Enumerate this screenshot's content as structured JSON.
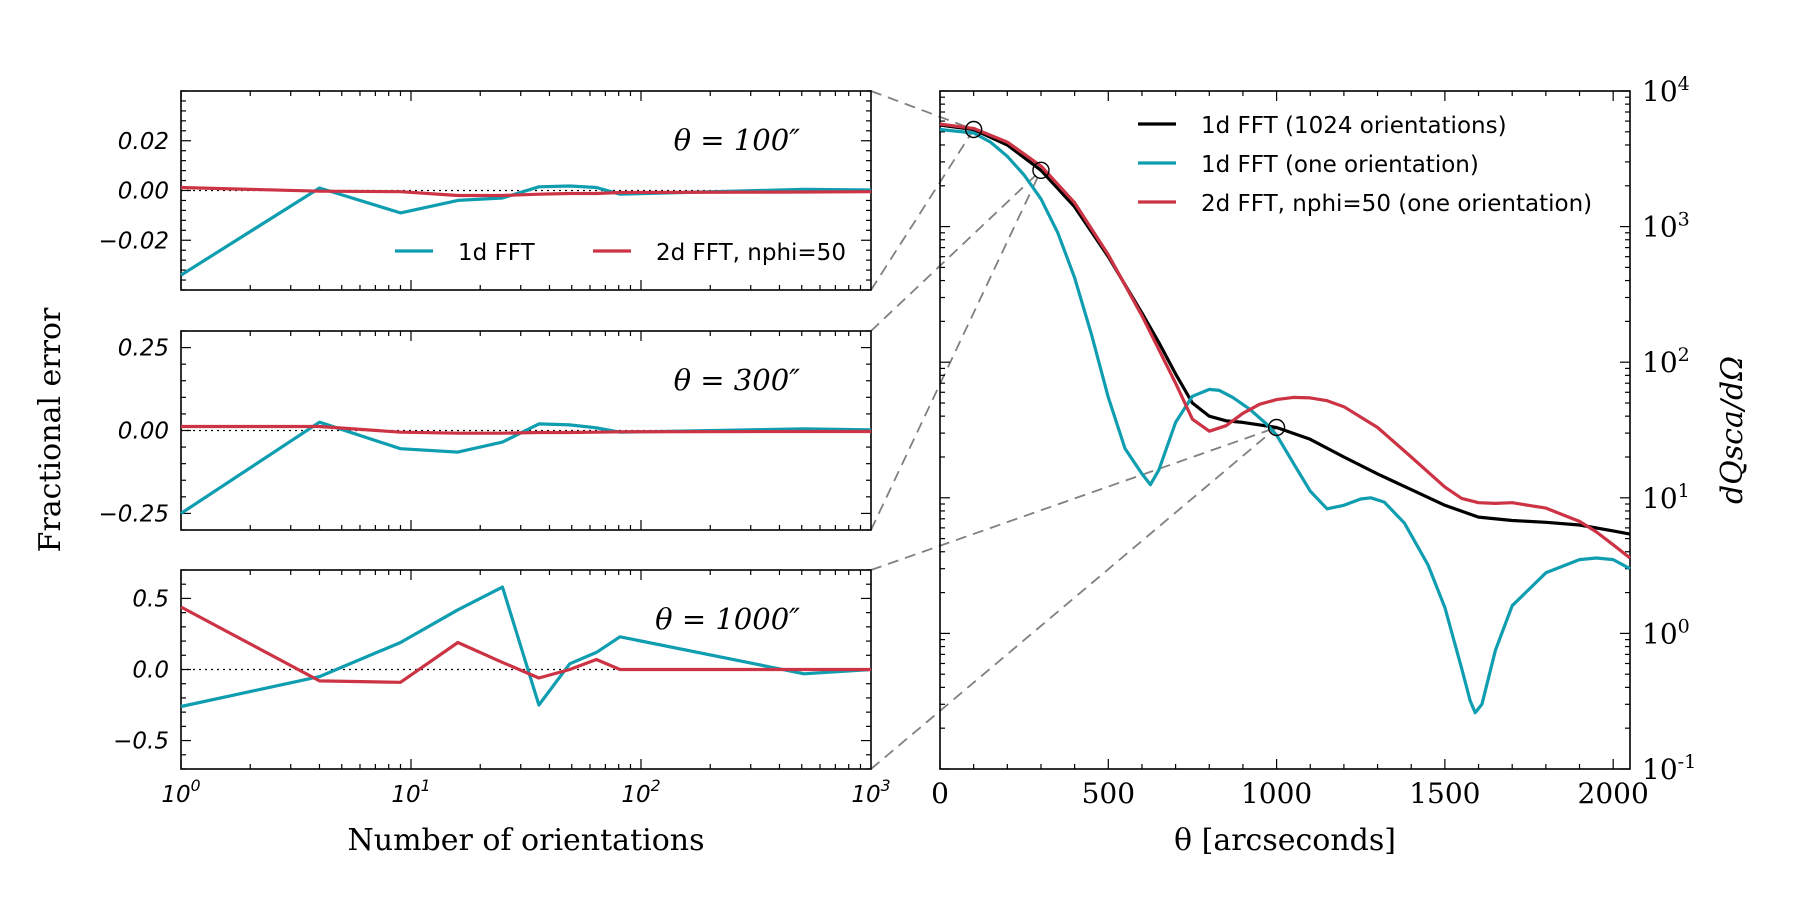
{
  "figure": {
    "shared_ylabel": "Fractional error",
    "left_xlabel": "Number of orientations",
    "right_xlabel": "θ [arcseconds]",
    "right_ylabel": "dQsca/dΩ"
  },
  "colors": {
    "black": "#000000",
    "teal": "#0f9db0",
    "red": "#cc3344",
    "connector": "#808080"
  },
  "chart_data": [
    {
      "type": "line",
      "annotation": "θ = 100″",
      "xscale": "log",
      "xlim": [
        1,
        1000
      ],
      "ylim": [
        -0.04,
        0.04
      ],
      "xticks": [
        1,
        10,
        100,
        1000
      ],
      "xtick_labels": [
        "10^0",
        "10^1",
        "10^2",
        "10^3"
      ],
      "yticks": [
        -0.02,
        0.0,
        0.02
      ],
      "ytick_labels": [
        "−0.02",
        "0.00",
        "0.02"
      ],
      "legend": {
        "placement": "lower-right",
        "entries": [
          "1d FFT",
          "2d FFT, nphi=50"
        ]
      },
      "series": [
        {
          "name": "1d FFT",
          "color": "#0f9db0",
          "x": [
            1,
            4,
            9,
            16,
            25,
            36,
            49,
            64,
            81,
            512,
            1000
          ],
          "y": [
            -0.034,
            0.001,
            -0.009,
            -0.004,
            -0.003,
            0.0015,
            0.0018,
            0.0012,
            -0.0015,
            0.0005,
            0.0002
          ]
        },
        {
          "name": "2d FFT, nphi=50",
          "color": "#cc3344",
          "x": [
            1,
            4,
            9,
            16,
            25,
            36,
            49,
            64,
            81,
            512,
            1000
          ],
          "y": [
            0.0012,
            -0.0003,
            -0.0005,
            -0.002,
            -0.002,
            -0.0015,
            -0.0012,
            -0.0012,
            -0.0008,
            -0.0006,
            -0.0005
          ]
        }
      ]
    },
    {
      "type": "line",
      "annotation": "θ = 300″",
      "xscale": "log",
      "xlim": [
        1,
        1000
      ],
      "ylim": [
        -0.3,
        0.3
      ],
      "xticks": [
        1,
        10,
        100,
        1000
      ],
      "yticks": [
        -0.25,
        0.0,
        0.25
      ],
      "ytick_labels": [
        "−0.25",
        "0.00",
        "0.25"
      ],
      "series": [
        {
          "name": "1d FFT",
          "color": "#0f9db0",
          "x": [
            1,
            4,
            9,
            16,
            25,
            36,
            49,
            64,
            81,
            512,
            1000
          ],
          "y": [
            -0.25,
            0.025,
            -0.055,
            -0.065,
            -0.035,
            0.02,
            0.017,
            0.008,
            -0.005,
            0.005,
            0.002
          ]
        },
        {
          "name": "2d FFT, nphi=50",
          "color": "#cc3344",
          "x": [
            1,
            4,
            9,
            16,
            25,
            36,
            49,
            64,
            81,
            512,
            1000
          ],
          "y": [
            0.012,
            0.012,
            -0.005,
            -0.008,
            -0.008,
            -0.006,
            -0.006,
            -0.005,
            -0.004,
            -0.003,
            -0.003
          ]
        }
      ]
    },
    {
      "type": "line",
      "annotation": "θ = 1000″",
      "xscale": "log",
      "xlim": [
        1,
        1000
      ],
      "ylim": [
        -0.7,
        0.7
      ],
      "xticks": [
        1,
        10,
        100,
        1000
      ],
      "yticks": [
        -0.5,
        0.0,
        0.5
      ],
      "ytick_labels": [
        "−0.5",
        "0.0",
        "0.5"
      ],
      "series": [
        {
          "name": "1d FFT",
          "color": "#0f9db0",
          "x": [
            1,
            4,
            9,
            16,
            25,
            36,
            49,
            64,
            81,
            512,
            1000
          ],
          "y": [
            -0.26,
            -0.05,
            0.19,
            0.42,
            0.58,
            -0.25,
            0.04,
            0.12,
            0.23,
            -0.03,
            0.0
          ]
        },
        {
          "name": "2d FFT, nphi=50",
          "color": "#cc3344",
          "x": [
            1,
            4,
            9,
            16,
            25,
            36,
            49,
            64,
            81,
            512,
            1000
          ],
          "y": [
            0.44,
            -0.08,
            -0.09,
            0.19,
            0.05,
            -0.06,
            0.0,
            0.07,
            0.0,
            0.0,
            0.0
          ]
        }
      ]
    },
    {
      "type": "line",
      "yscale": "log",
      "xlim": [
        0,
        2050
      ],
      "ylim": [
        0.1,
        10000
      ],
      "xticks": [
        0,
        500,
        1000,
        1500,
        2000
      ],
      "xtick_labels": [
        "0",
        "500",
        "1000",
        "1500",
        "2000"
      ],
      "yticks": [
        0.1,
        1,
        10,
        100,
        1000,
        10000
      ],
      "ytick_labels": [
        "10^-1",
        "10^0",
        "10^1",
        "10^2",
        "10^3",
        "10^4"
      ],
      "yaxis_side": "right",
      "legend": {
        "placement": "top-right",
        "entries": [
          "1d FFT (1024 orientations)",
          "1d FFT (one orientation)",
          "2d FFT, nphi=50 (one orientation)"
        ]
      },
      "markers": [
        [
          100,
          5200
        ],
        [
          300,
          2600
        ],
        [
          1000,
          33
        ]
      ],
      "series": [
        {
          "name": "1d FFT (1024 orientations)",
          "color": "#000000",
          "x": [
            0,
            100,
            200,
            300,
            400,
            500,
            600,
            650,
            700,
            750,
            800,
            850,
            900,
            1000,
            1100,
            1200,
            1300,
            1400,
            1500,
            1600,
            1700,
            1800,
            1900,
            2000,
            2050
          ],
          "y": [
            5600,
            5200,
            4000,
            2600,
            1400,
            600,
            230,
            140,
            82,
            50,
            40,
            37,
            36,
            33,
            27,
            20,
            15,
            11.5,
            8.8,
            7.2,
            6.8,
            6.6,
            6.3,
            5.7,
            5.4
          ]
        },
        {
          "name": "1d FFT (one orientation)",
          "color": "#0f9db0",
          "x": [
            0,
            100,
            150,
            200,
            250,
            300,
            350,
            400,
            450,
            500,
            550,
            600,
            625,
            650,
            700,
            750,
            800,
            830,
            870,
            920,
            970,
            1000,
            1050,
            1100,
            1150,
            1200,
            1250,
            1280,
            1320,
            1380,
            1450,
            1500,
            1550,
            1575,
            1590,
            1610,
            1650,
            1700,
            1800,
            1900,
            1950,
            2000,
            2050
          ],
          "y": [
            5200,
            4900,
            4200,
            3300,
            2400,
            1600,
            900,
            420,
            160,
            55,
            23,
            15,
            12.5,
            16,
            36,
            56,
            63,
            62,
            55,
            45,
            35,
            29,
            18,
            11.2,
            8.3,
            8.8,
            9.8,
            10,
            9.3,
            6.5,
            3.2,
            1.55,
            0.55,
            0.32,
            0.26,
            0.3,
            0.75,
            1.6,
            2.8,
            3.5,
            3.6,
            3.5,
            3.0
          ]
        },
        {
          "name": "2d FFT, nphi=50 (one orientation)",
          "color": "#cc3344",
          "x": [
            0,
            100,
            200,
            300,
            400,
            500,
            600,
            700,
            750,
            800,
            850,
            900,
            950,
            1000,
            1050,
            1100,
            1150,
            1200,
            1300,
            1400,
            1500,
            1550,
            1600,
            1650,
            1700,
            1800,
            1900,
            1950,
            2000,
            2050
          ],
          "y": [
            5700,
            5300,
            4200,
            2800,
            1500,
            620,
            220,
            70,
            38,
            31,
            34,
            42,
            49,
            53,
            55,
            54.5,
            52,
            47,
            33,
            20,
            12,
            9.9,
            9.2,
            9.1,
            9.2,
            8.4,
            6.7,
            5.6,
            4.5,
            3.6
          ]
        }
      ]
    }
  ]
}
